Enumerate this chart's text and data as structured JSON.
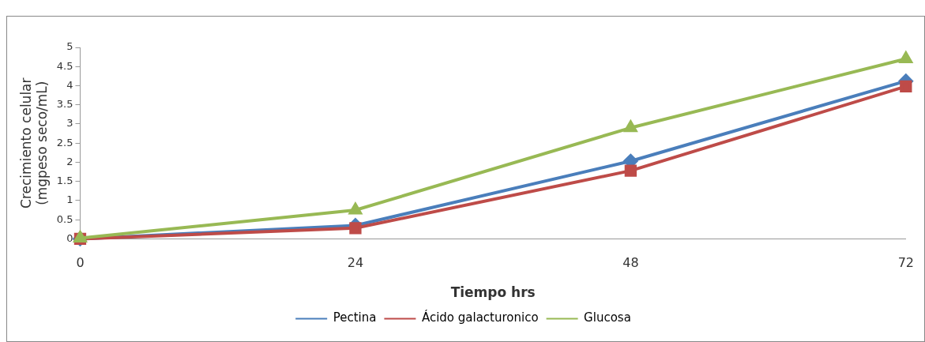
{
  "chart_data": {
    "type": "line",
    "xlabel": "Tiempo hrs",
    "ylabel": "Crecimiento celular\n(mgpeso seco/mL)",
    "x": [
      0,
      24,
      48,
      72
    ],
    "xlim": [
      0,
      72
    ],
    "xticks": [
      0,
      24,
      48,
      72
    ],
    "ylim": [
      0,
      5
    ],
    "yticks": [
      0,
      0.5,
      1,
      1.5,
      2,
      2.5,
      3,
      3.5,
      4,
      4.5,
      5
    ],
    "grid": false,
    "legend": "bottom",
    "line_style": "solid",
    "series": [
      {
        "name": "Pectina",
        "color": "#4a7ebb",
        "marker": "diamond",
        "values": [
          0,
          0.35,
          2.03,
          4.12
        ]
      },
      {
        "name": "Ácido galacturonico",
        "color": "#be4b48",
        "marker": "square",
        "values": [
          0,
          0.28,
          1.78,
          3.98
        ]
      },
      {
        "name": "Glucosa",
        "color": "#98b954",
        "marker": "triangle",
        "values": [
          0.02,
          0.75,
          2.9,
          4.7
        ]
      }
    ]
  }
}
